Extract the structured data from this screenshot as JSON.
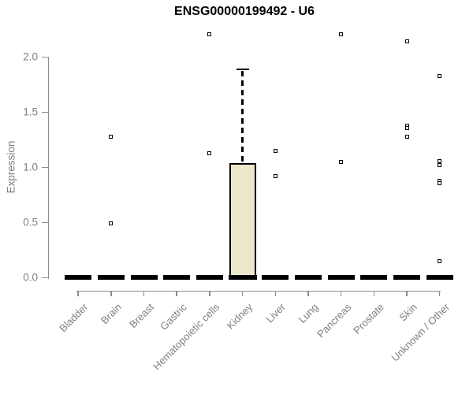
{
  "title": "ENSG00000199492 - U6",
  "chart_data": {
    "type": "boxplot",
    "title": "ENSG00000199492 - U6",
    "xlabel": "",
    "ylabel": "Expression",
    "ylim": [
      0,
      2.3
    ],
    "yticks": [
      0.0,
      0.5,
      1.0,
      1.5,
      2.0
    ],
    "ytick_labels": [
      "0.0",
      "0.5",
      "1.0",
      "1.5",
      "2.0"
    ],
    "grid": false,
    "legend": null,
    "categories": [
      "Bladder",
      "Brain",
      "Breast",
      "Gastric",
      "Hematopoietic cells",
      "Kidney",
      "Liver",
      "Lung",
      "Pancreas",
      "Prostate",
      "Skin",
      "Unknown / Other"
    ],
    "boxes": [
      {
        "category": "Bladder",
        "median": 0,
        "q1": 0,
        "q3": 0,
        "whisker_low": 0,
        "whisker_high": 0,
        "outliers": []
      },
      {
        "category": "Brain",
        "median": 0,
        "q1": 0,
        "q3": 0,
        "whisker_low": 0,
        "whisker_high": 0,
        "outliers": [
          1.28,
          0.49
        ]
      },
      {
        "category": "Breast",
        "median": 0,
        "q1": 0,
        "q3": 0,
        "whisker_low": 0,
        "whisker_high": 0,
        "outliers": []
      },
      {
        "category": "Gastric",
        "median": 0,
        "q1": 0,
        "q3": 0,
        "whisker_low": 0,
        "whisker_high": 0,
        "outliers": []
      },
      {
        "category": "Hematopoietic cells",
        "median": 0,
        "q1": 0,
        "q3": 0,
        "whisker_low": 0,
        "whisker_high": 0,
        "outliers": [
          2.21,
          1.13
        ]
      },
      {
        "category": "Kidney",
        "median": 0,
        "q1": 0,
        "q3": 1.04,
        "whisker_low": 0,
        "whisker_high": 1.89,
        "outliers": []
      },
      {
        "category": "Liver",
        "median": 0,
        "q1": 0,
        "q3": 0,
        "whisker_low": 0,
        "whisker_high": 0,
        "outliers": [
          1.15,
          0.92
        ]
      },
      {
        "category": "Lung",
        "median": 0,
        "q1": 0,
        "q3": 0,
        "whisker_low": 0,
        "whisker_high": 0,
        "outliers": []
      },
      {
        "category": "Pancreas",
        "median": 0,
        "q1": 0,
        "q3": 0,
        "whisker_low": 0,
        "whisker_high": 0,
        "outliers": [
          2.21,
          1.05
        ]
      },
      {
        "category": "Prostate",
        "median": 0,
        "q1": 0,
        "q3": 0,
        "whisker_low": 0,
        "whisker_high": 0,
        "outliers": []
      },
      {
        "category": "Skin",
        "median": 0,
        "q1": 0,
        "q3": 0,
        "whisker_low": 0,
        "whisker_high": 0,
        "outliers": [
          2.14,
          1.38,
          1.36,
          1.28
        ]
      },
      {
        "category": "Unknown / Other",
        "median": 0,
        "q1": 0,
        "q3": 0,
        "whisker_low": 0,
        "whisker_high": 0,
        "outliers": [
          1.83,
          1.06,
          1.02,
          0.88,
          0.86,
          0.15
        ]
      }
    ],
    "colors": {
      "box_fill": "#EDE7CC",
      "box_border": "#000000",
      "median": "#000000",
      "axis": "#8c8c8c",
      "tick_label": "#808080",
      "title": "#000000",
      "background": "#ffffff"
    }
  }
}
